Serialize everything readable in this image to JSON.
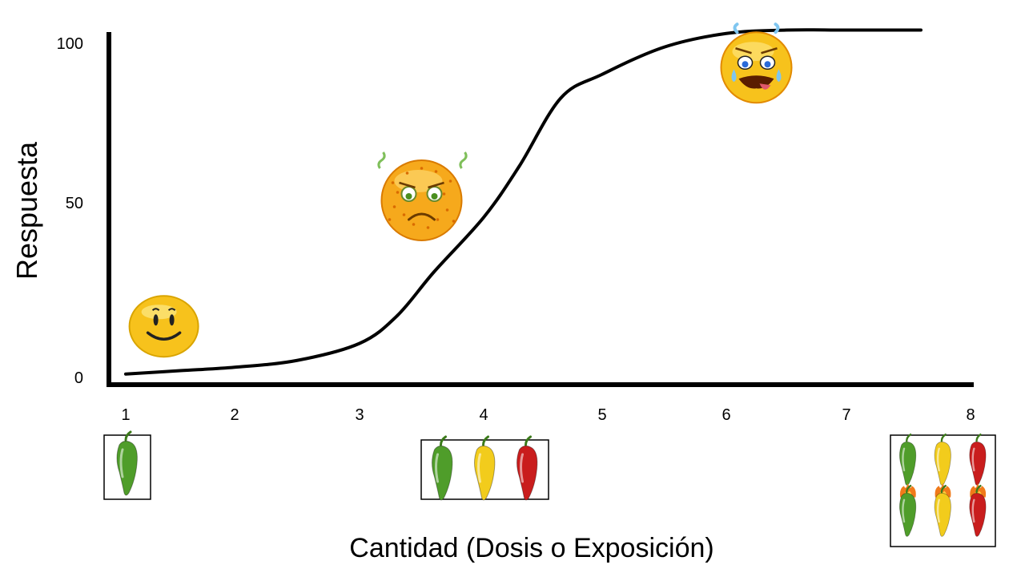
{
  "chart_data": {
    "type": "line",
    "title": "",
    "xlabel": "Cantidad (Dosis o Exposición)",
    "ylabel": "Respuesta",
    "x_ticks": [
      1,
      2,
      3,
      4,
      5,
      6,
      7,
      8
    ],
    "y_ticks": [
      0,
      50,
      100
    ],
    "xlim": [
      1,
      8
    ],
    "ylim": [
      0,
      100
    ],
    "grid": false,
    "series": [
      {
        "x": [
          1.0,
          1.5,
          2.0,
          2.5,
          3.0,
          3.3,
          3.6,
          4.0,
          4.3,
          4.65,
          5.0,
          5.5,
          6.0,
          6.5,
          7.0,
          7.6
        ],
        "y": [
          1,
          2,
          3,
          5,
          10,
          18,
          31,
          47,
          62,
          82,
          89,
          97,
          101,
          102,
          102,
          102
        ]
      }
    ],
    "annotations": [
      {
        "icon": "happy-face-icon",
        "x": 1.35,
        "y": 15
      },
      {
        "icon": "sick-face-icon",
        "x": 3.5,
        "y": 52
      },
      {
        "icon": "crying-face-icon",
        "x": 6.25,
        "y": 91
      }
    ],
    "pepper_groups": [
      {
        "x": 1,
        "peppers": [
          "green"
        ]
      },
      {
        "x": 4,
        "peppers": [
          "green",
          "yellow",
          "red"
        ]
      },
      {
        "x": 8,
        "peppers": [
          "green",
          "yellow",
          "red",
          "green-flaming",
          "yellow-flaming",
          "red-flaming"
        ]
      }
    ],
    "colors": {
      "curve": "#000000",
      "axis": "#000000",
      "pepper_green": "#4f9d2a",
      "pepper_yellow": "#f2cc1c",
      "pepper_red": "#c91d1d",
      "face": "#f7c21c"
    }
  }
}
